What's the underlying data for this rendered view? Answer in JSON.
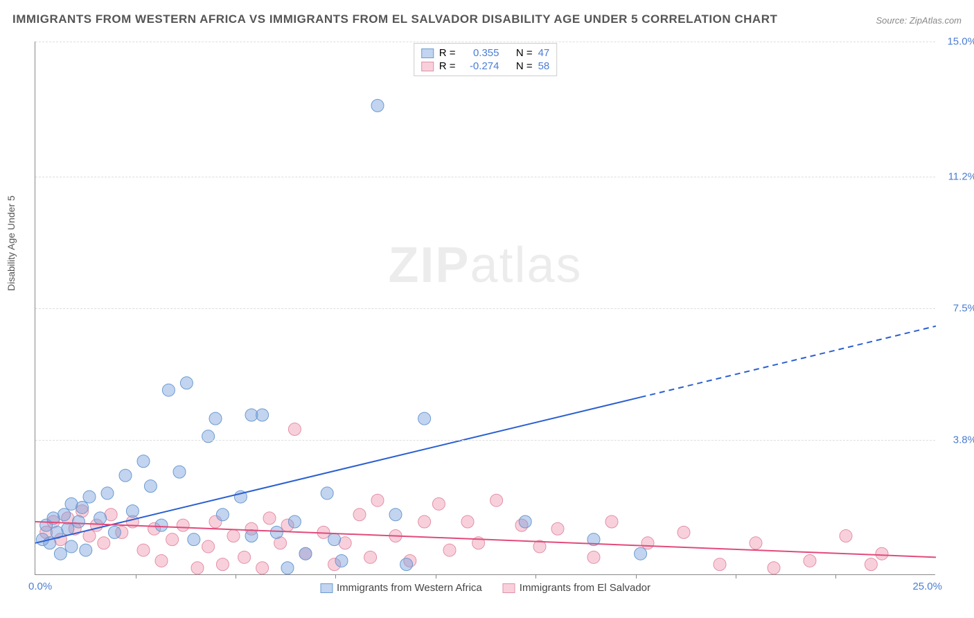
{
  "title": "IMMIGRANTS FROM WESTERN AFRICA VS IMMIGRANTS FROM EL SALVADOR DISABILITY AGE UNDER 5 CORRELATION CHART",
  "source": "Source: ZipAtlas.com",
  "ylabel": "Disability Age Under 5",
  "watermark_bold": "ZIP",
  "watermark_rest": "atlas",
  "chart": {
    "type": "scatter",
    "xlim": [
      0,
      25
    ],
    "ylim": [
      0,
      15
    ],
    "xticks_minor": [
      2.78,
      5.56,
      8.33,
      11.11,
      13.89,
      16.67,
      19.44,
      22.22
    ],
    "xmin_label": "0.0%",
    "xmax_label": "25.0%",
    "yticks": [
      {
        "v": 3.8,
        "label": "3.8%"
      },
      {
        "v": 7.5,
        "label": "7.5%"
      },
      {
        "v": 11.2,
        "label": "11.2%"
      },
      {
        "v": 15.0,
        "label": "15.0%"
      }
    ],
    "grid_color": "#dddddd",
    "axis_color": "#888888",
    "background_color": "#ffffff",
    "series": [
      {
        "name": "Immigrants from Western Africa",
        "color_fill": "rgba(120,160,220,0.45)",
        "color_stroke": "#6b9bd1",
        "line_color": "#2a5fd0",
        "r_label": "0.355",
        "n_label": "47",
        "points": [
          [
            0.2,
            1.0
          ],
          [
            0.3,
            1.4
          ],
          [
            0.4,
            0.9
          ],
          [
            0.5,
            1.6
          ],
          [
            0.6,
            1.2
          ],
          [
            0.7,
            0.6
          ],
          [
            0.8,
            1.7
          ],
          [
            0.9,
            1.3
          ],
          [
            1.0,
            2.0
          ],
          [
            1.0,
            0.8
          ],
          [
            1.2,
            1.5
          ],
          [
            1.3,
            1.9
          ],
          [
            1.4,
            0.7
          ],
          [
            1.5,
            2.2
          ],
          [
            1.8,
            1.6
          ],
          [
            2.0,
            2.3
          ],
          [
            2.2,
            1.2
          ],
          [
            2.5,
            2.8
          ],
          [
            2.7,
            1.8
          ],
          [
            3.0,
            3.2
          ],
          [
            3.2,
            2.5
          ],
          [
            3.5,
            1.4
          ],
          [
            3.7,
            5.2
          ],
          [
            4.0,
            2.9
          ],
          [
            4.2,
            5.4
          ],
          [
            4.4,
            1.0
          ],
          [
            4.8,
            3.9
          ],
          [
            5.0,
            4.4
          ],
          [
            5.2,
            1.7
          ],
          [
            5.7,
            2.2
          ],
          [
            6.0,
            4.5
          ],
          [
            6.0,
            1.1
          ],
          [
            6.3,
            4.5
          ],
          [
            6.7,
            1.2
          ],
          [
            7.0,
            0.2
          ],
          [
            7.2,
            1.5
          ],
          [
            7.5,
            0.6
          ],
          [
            8.1,
            2.3
          ],
          [
            8.3,
            1.0
          ],
          [
            8.5,
            0.4
          ],
          [
            9.5,
            13.2
          ],
          [
            10.0,
            1.7
          ],
          [
            10.3,
            0.3
          ],
          [
            10.8,
            4.4
          ],
          [
            13.6,
            1.5
          ],
          [
            15.5,
            1.0
          ],
          [
            16.8,
            0.6
          ]
        ],
        "trend": {
          "x1": 0,
          "y1": 0.9,
          "x2": 16.8,
          "y2": 5.0,
          "x3": 25,
          "y3": 7.0
        }
      },
      {
        "name": "Immigrants from El Salvador",
        "color_fill": "rgba(240,150,175,0.45)",
        "color_stroke": "#e290a8",
        "line_color": "#e24a7a",
        "r_label": "-0.274",
        "n_label": "58",
        "points": [
          [
            0.3,
            1.2
          ],
          [
            0.5,
            1.5
          ],
          [
            0.7,
            1.0
          ],
          [
            0.9,
            1.6
          ],
          [
            1.1,
            1.3
          ],
          [
            1.3,
            1.8
          ],
          [
            1.5,
            1.1
          ],
          [
            1.7,
            1.4
          ],
          [
            1.9,
            0.9
          ],
          [
            2.1,
            1.7
          ],
          [
            2.4,
            1.2
          ],
          [
            2.7,
            1.5
          ],
          [
            3.0,
            0.7
          ],
          [
            3.3,
            1.3
          ],
          [
            3.5,
            0.4
          ],
          [
            3.8,
            1.0
          ],
          [
            4.1,
            1.4
          ],
          [
            4.5,
            0.2
          ],
          [
            4.8,
            0.8
          ],
          [
            5.0,
            1.5
          ],
          [
            5.2,
            0.3
          ],
          [
            5.5,
            1.1
          ],
          [
            5.8,
            0.5
          ],
          [
            6.0,
            1.3
          ],
          [
            6.3,
            0.2
          ],
          [
            6.5,
            1.6
          ],
          [
            6.8,
            0.9
          ],
          [
            7.0,
            1.4
          ],
          [
            7.2,
            4.1
          ],
          [
            7.5,
            0.6
          ],
          [
            8.0,
            1.2
          ],
          [
            8.3,
            0.3
          ],
          [
            8.6,
            0.9
          ],
          [
            9.0,
            1.7
          ],
          [
            9.3,
            0.5
          ],
          [
            9.5,
            2.1
          ],
          [
            10.0,
            1.1
          ],
          [
            10.4,
            0.4
          ],
          [
            10.8,
            1.5
          ],
          [
            11.2,
            2.0
          ],
          [
            11.5,
            0.7
          ],
          [
            12.0,
            1.5
          ],
          [
            12.3,
            0.9
          ],
          [
            12.8,
            2.1
          ],
          [
            13.5,
            1.4
          ],
          [
            14.0,
            0.8
          ],
          [
            14.5,
            1.3
          ],
          [
            15.5,
            0.5
          ],
          [
            16.0,
            1.5
          ],
          [
            17.0,
            0.9
          ],
          [
            18.0,
            1.2
          ],
          [
            19.0,
            0.3
          ],
          [
            20.0,
            0.9
          ],
          [
            20.5,
            0.2
          ],
          [
            21.5,
            0.4
          ],
          [
            22.5,
            1.1
          ],
          [
            23.2,
            0.3
          ],
          [
            23.5,
            0.6
          ]
        ],
        "trend": {
          "x1": 0,
          "y1": 1.5,
          "x2": 25,
          "y2": 0.5
        }
      }
    ]
  },
  "legend_top": {
    "r_prefix": "R =",
    "n_prefix": "N ="
  },
  "colors": {
    "tick_label": "#4a7dd4",
    "title": "#555555",
    "source": "#888888"
  }
}
